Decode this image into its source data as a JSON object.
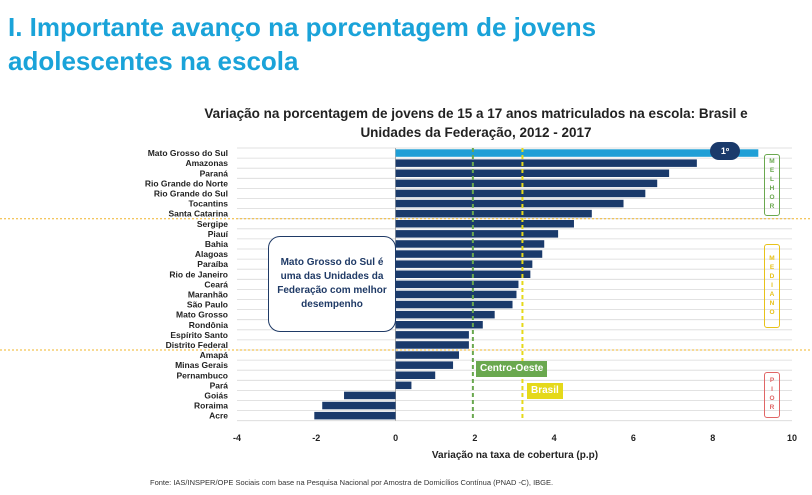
{
  "page": {
    "title_line1": "I. Importante avanço na porcentagem de jovens",
    "title_line2": "adolescentes na escola",
    "footer": "Fonte: IAS/INSPER/OPE Sociais  com base na Pesquisa Nacional por Amostra de Domicílios Contínua (PNAD  -C), IBGE."
  },
  "annotations": {
    "callout": "Mato Grosso do Sul é uma das Unidades da Federação com melhor desempenho",
    "rank_badge": "1º",
    "tier_best": "MELHOR",
    "tier_middle": "MEDIANO",
    "tier_worst": "PIOR",
    "ref_centro_oeste": "Centro-Oeste",
    "ref_brasil": "Brasil",
    "colors": {
      "bar": "#1a3a6b",
      "highlight": "#1f9fd6",
      "centro_oeste": "#6aa84f",
      "brasil": "#e5d91a",
      "tier_best": "#6aa84f",
      "tier_middle": "#e8c21a",
      "tier_worst": "#e06666",
      "title": "#1aa3d9"
    }
  },
  "chart_data": {
    "type": "bar",
    "orientation": "horizontal",
    "title_line1": "Variação na porcentagem de jovens de  15 a 17 anos matriculados na escola: Brasil e",
    "title_line2": "Unidades da Federação, 2012 - 2017",
    "xlabel": "Variação na taxa de cobertura (p.p)",
    "ylabel": "",
    "xlim": [
      -4,
      10
    ],
    "xticks": [
      "-4",
      "-2",
      "0",
      "2",
      "4",
      "6",
      "8",
      "10"
    ],
    "grid": true,
    "reference_lines": [
      {
        "name": "Centro-Oeste",
        "value": 1.95
      },
      {
        "name": "Brasil",
        "value": 3.2
      }
    ],
    "categories": [
      "Mato Grosso do Sul",
      "Amazonas",
      "Paraná",
      "Rio Grande do Norte",
      "Rio Grande do Sul",
      "Tocantins",
      "Santa Catarina",
      "Sergipe",
      "Piauí",
      "Bahia",
      "Alagoas",
      "Paraíba",
      "Rio de Janeiro",
      "Ceará",
      "Maranhão",
      "São Paulo",
      "Mato Grosso",
      "Rondônia",
      "Espírito Santo",
      "Distrito Federal",
      "Amapá",
      "Minas Gerais",
      "Pernambuco",
      "Pará",
      "Goiás",
      "Roraima",
      "Acre"
    ],
    "values": [
      9.15,
      7.6,
      6.9,
      6.6,
      6.3,
      5.75,
      4.95,
      4.5,
      4.1,
      3.75,
      3.7,
      3.45,
      3.4,
      3.1,
      3.05,
      2.95,
      2.5,
      2.2,
      1.85,
      1.85,
      1.6,
      1.45,
      1.0,
      0.4,
      -1.3,
      -1.85,
      -2.05
    ],
    "highlight_index": 0
  }
}
